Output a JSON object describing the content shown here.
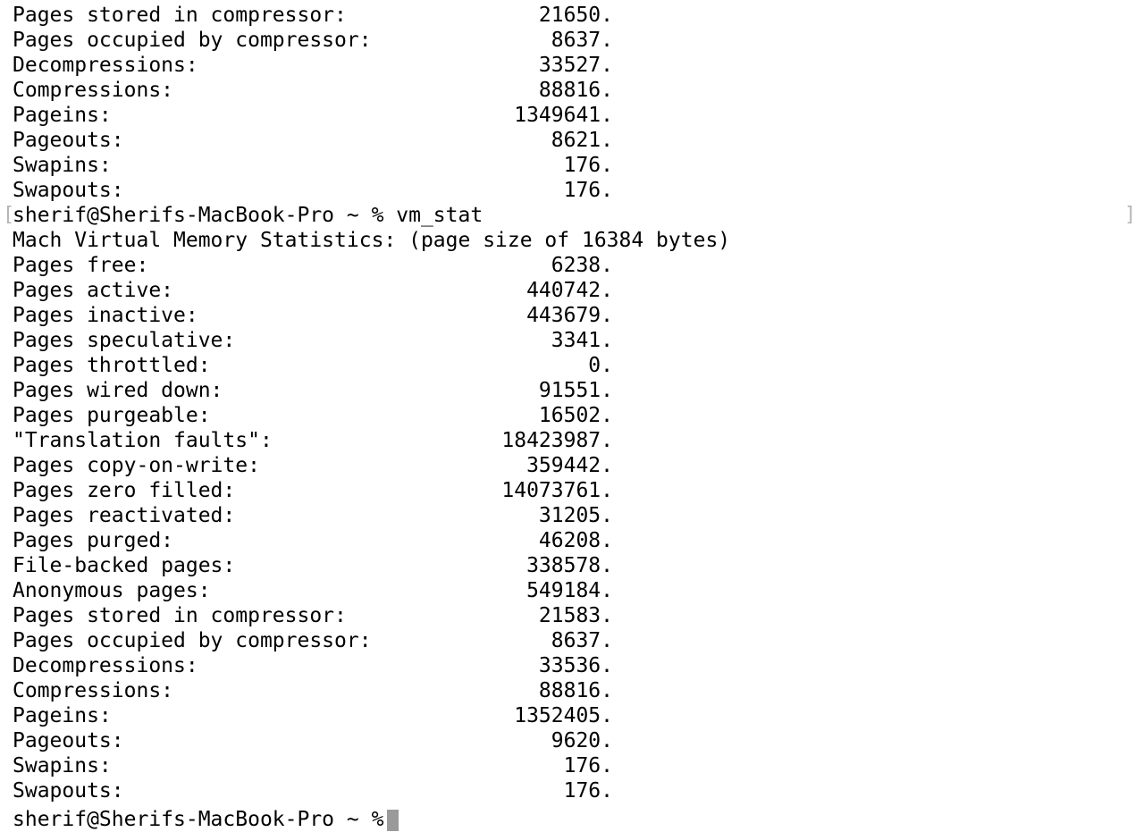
{
  "terminal": {
    "previous_output": [
      {
        "label": "Pages stored in compressor:",
        "value": "21650."
      },
      {
        "label": "Pages occupied by compressor:",
        "value": "8637."
      },
      {
        "label": "Decompressions:",
        "value": "33527."
      },
      {
        "label": "Compressions:",
        "value": "88816."
      },
      {
        "label": "Pageins:",
        "value": "1349641."
      },
      {
        "label": "Pageouts:",
        "value": "8621."
      },
      {
        "label": "Swapins:",
        "value": "176."
      },
      {
        "label": "Swapouts:",
        "value": "176."
      }
    ],
    "prompt": "sherif@Sherifs-MacBook-Pro ~ % ",
    "command": "vm_stat",
    "header": "Mach Virtual Memory Statistics: (page size of 16384 bytes)",
    "output": [
      {
        "label": "Pages free:",
        "value": "6238."
      },
      {
        "label": "Pages active:",
        "value": "440742."
      },
      {
        "label": "Pages inactive:",
        "value": "443679."
      },
      {
        "label": "Pages speculative:",
        "value": "3341."
      },
      {
        "label": "Pages throttled:",
        "value": "0."
      },
      {
        "label": "Pages wired down:",
        "value": "91551."
      },
      {
        "label": "Pages purgeable:",
        "value": "16502."
      },
      {
        "label": "\"Translation faults\":",
        "value": "18423987."
      },
      {
        "label": "Pages copy-on-write:",
        "value": "359442."
      },
      {
        "label": "Pages zero filled:",
        "value": "14073761."
      },
      {
        "label": "Pages reactivated:",
        "value": "31205."
      },
      {
        "label": "Pages purged:",
        "value": "46208."
      },
      {
        "label": "File-backed pages:",
        "value": "338578."
      },
      {
        "label": "Anonymous pages:",
        "value": "549184."
      },
      {
        "label": "Pages stored in compressor:",
        "value": "21583."
      },
      {
        "label": "Pages occupied by compressor:",
        "value": "8637."
      },
      {
        "label": "Decompressions:",
        "value": "33536."
      },
      {
        "label": "Compressions:",
        "value": "88816."
      },
      {
        "label": "Pageins:",
        "value": "1352405."
      },
      {
        "label": "Pageouts:",
        "value": "9620."
      },
      {
        "label": "Swapins:",
        "value": "176."
      },
      {
        "label": "Swapouts:",
        "value": "176."
      }
    ],
    "current_prompt": "sherif@Sherifs-MacBook-Pro ~ %",
    "mark_open": "[",
    "mark_close": "]"
  }
}
